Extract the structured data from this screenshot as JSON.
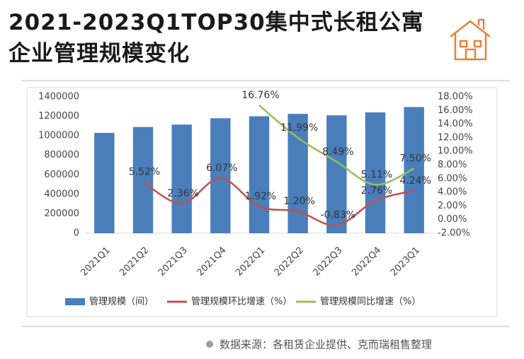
{
  "chart_data": {
    "type": "bar",
    "title": "2021-2023Q1TOP30集中式长租公寓企业管理规模变化",
    "categories": [
      "2021Q1",
      "2021Q2",
      "2021Q3",
      "2021Q4",
      "2022Q1",
      "2022Q2",
      "2022Q3",
      "2022Q4",
      "2023Q1"
    ],
    "series": [
      {
        "name": "管理规模（间）",
        "type": "bar",
        "color": "#4a7ebb",
        "values": [
          1030000,
          1090000,
          1115000,
          1180000,
          1200000,
          1225000,
          1210000,
          1240000,
          1295000
        ]
      },
      {
        "name": "管理规模环比增速（%）",
        "type": "line",
        "axis": "y2",
        "color": "#c0504d",
        "values": [
          null,
          5.52,
          2.36,
          6.07,
          1.92,
          1.2,
          -0.83,
          2.76,
          4.24
        ],
        "value_labels": [
          null,
          "5.52%",
          "2.36%",
          "6.07%",
          "1.92%",
          "1.20%",
          "-0.83%",
          "2.76%",
          "4.24%"
        ]
      },
      {
        "name": "管理规模同比增速（%）",
        "type": "line",
        "axis": "y2",
        "color": "#9bbb59",
        "values": [
          null,
          null,
          null,
          null,
          16.76,
          11.99,
          8.49,
          5.11,
          7.5
        ],
        "value_labels": [
          null,
          null,
          null,
          null,
          "16.76%",
          "11.99%",
          "8.49%",
          "5.11%",
          "7.50%"
        ]
      }
    ],
    "ylim": [
      0,
      1400000
    ],
    "yticks": [
      0,
      200000,
      400000,
      600000,
      800000,
      1000000,
      1200000,
      1400000
    ],
    "y2lim": [
      -2,
      18
    ],
    "y2ticks": [
      {
        "value": -2,
        "label": "-2.00%"
      },
      {
        "value": 0,
        "label": "0.00%"
      },
      {
        "value": 2,
        "label": "2.00%"
      },
      {
        "value": 4,
        "label": "4.00%"
      },
      {
        "value": 6,
        "label": "6.00%"
      },
      {
        "value": 8,
        "label": "8.00%"
      },
      {
        "value": 10,
        "label": "10.00%"
      },
      {
        "value": 12,
        "label": "12.00%"
      },
      {
        "value": 14,
        "label": "14.00%"
      },
      {
        "value": 16,
        "label": "16.00%"
      },
      {
        "value": 18,
        "label": "18.00%"
      }
    ],
    "legend": "bottom",
    "source": "数据来源：各租赁企业提供、克而瑞租售整理"
  }
}
